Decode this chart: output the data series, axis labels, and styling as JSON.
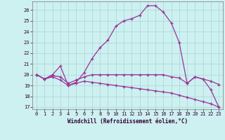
{
  "xlabel": "Windchill (Refroidissement éolien,°C)",
  "bg_color": "#cdf0f0",
  "grid_color": "#aad4d4",
  "line_color": "#993399",
  "xlim": [
    -0.5,
    23.5
  ],
  "ylim": [
    16.8,
    26.8
  ],
  "xticks": [
    0,
    1,
    2,
    3,
    4,
    5,
    6,
    7,
    8,
    9,
    10,
    11,
    12,
    13,
    14,
    15,
    16,
    17,
    18,
    19,
    20,
    21,
    22,
    23
  ],
  "yticks": [
    17,
    18,
    19,
    20,
    21,
    22,
    23,
    24,
    25,
    26
  ],
  "series1_x": [
    0,
    1,
    2,
    3,
    4,
    5,
    6,
    7,
    8,
    9,
    10,
    11,
    12,
    13,
    14,
    15,
    16,
    17,
    18,
    19,
    20,
    21,
    22,
    23
  ],
  "series1_y": [
    20.0,
    19.6,
    20.0,
    20.8,
    19.0,
    19.3,
    20.2,
    21.5,
    22.5,
    23.2,
    24.5,
    25.0,
    25.2,
    25.5,
    26.4,
    26.4,
    25.8,
    24.8,
    23.0,
    19.2,
    19.8,
    19.6,
    18.6,
    17.0
  ],
  "series2_x": [
    0,
    1,
    2,
    3,
    4,
    5,
    6,
    7,
    8,
    9,
    10,
    11,
    12,
    13,
    14,
    15,
    16,
    17,
    18,
    19,
    20,
    21,
    22,
    23
  ],
  "series2_y": [
    20.0,
    19.6,
    19.9,
    19.8,
    19.2,
    19.5,
    19.8,
    20.0,
    20.0,
    20.0,
    20.0,
    20.0,
    20.0,
    20.0,
    20.0,
    20.0,
    20.0,
    19.8,
    19.7,
    19.2,
    19.8,
    19.6,
    19.4,
    19.1
  ],
  "series3_x": [
    0,
    1,
    2,
    3,
    4,
    5,
    6,
    7,
    8,
    9,
    10,
    11,
    12,
    13,
    14,
    15,
    16,
    17,
    18,
    19,
    20,
    21,
    22,
    23
  ],
  "series3_y": [
    20.0,
    19.6,
    19.8,
    19.5,
    19.0,
    19.2,
    19.4,
    19.3,
    19.2,
    19.1,
    19.0,
    18.9,
    18.8,
    18.7,
    18.6,
    18.5,
    18.4,
    18.3,
    18.1,
    17.9,
    17.7,
    17.5,
    17.3,
    17.0
  ]
}
